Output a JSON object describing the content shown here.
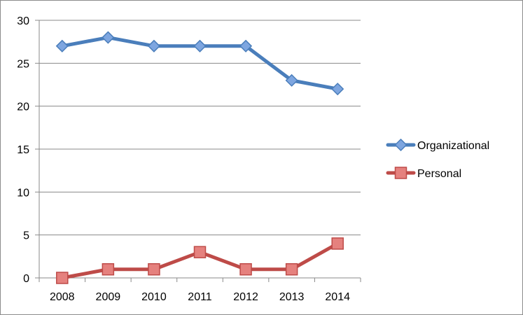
{
  "chart_data": {
    "type": "line",
    "title": "",
    "xlabel": "",
    "ylabel": "",
    "categories": [
      "2008",
      "2009",
      "2010",
      "2011",
      "2012",
      "2013",
      "2014"
    ],
    "ylim": [
      0,
      30
    ],
    "yticks": [
      0,
      5,
      10,
      15,
      20,
      25,
      30
    ],
    "grid": true,
    "legend_position": "right",
    "series": [
      {
        "name": "Organizational",
        "values": [
          27,
          28,
          27,
          27,
          27,
          23,
          22
        ],
        "color": "#4a7ebb",
        "marker": "diamond",
        "marker_fill": "#7ea6e0"
      },
      {
        "name": "Personal",
        "values": [
          0,
          1,
          1,
          3,
          1,
          1,
          4
        ],
        "color": "#be4b48",
        "marker": "square",
        "marker_fill": "#e5817e"
      }
    ]
  }
}
